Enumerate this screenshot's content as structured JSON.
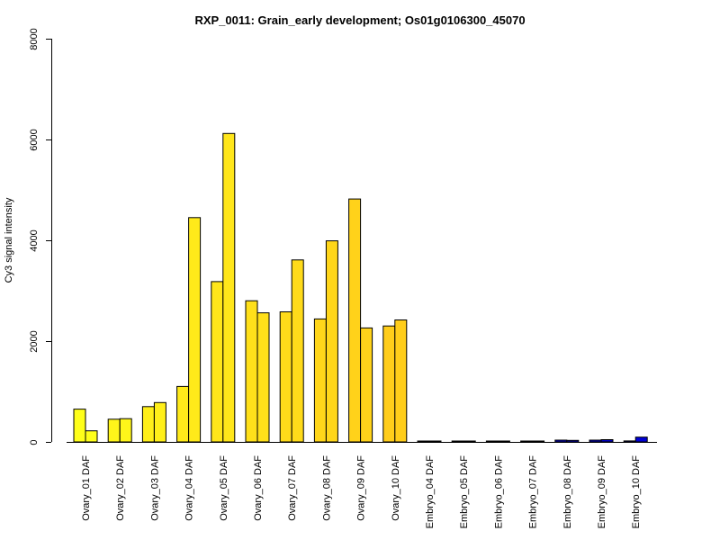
{
  "chart_data": {
    "type": "bar",
    "title": "RXP_0011: Grain_early development; Os01g0106300_45070",
    "xlabel": "",
    "ylabel": "Cy3 signal intensity",
    "ylim": [
      0,
      8000
    ],
    "yticks": [
      "0",
      "2000",
      "4000",
      "6000",
      "8000"
    ],
    "grid": false,
    "bars_per_group": 2,
    "categories": [
      "Ovary_01 DAF",
      "Ovary_02 DAF",
      "Ovary_03 DAF",
      "Ovary_04 DAF",
      "Ovary_05 DAF",
      "Ovary_06 DAF",
      "Ovary_07 DAF",
      "Ovary_08 DAF",
      "Ovary_09 DAF",
      "Ovary_10 DAF",
      "Embryo_04 DAF",
      "Embryo_05 DAF",
      "Embryo_06 DAF",
      "Embryo_07 DAF",
      "Embryo_08 DAF",
      "Embryo_09 DAF",
      "Embryo_10 DAF"
    ],
    "values": [
      [
        650,
        220
      ],
      [
        450,
        460
      ],
      [
        700,
        780
      ],
      [
        1100,
        4450
      ],
      [
        3180,
        6120
      ],
      [
        2800,
        2560
      ],
      [
        2580,
        3610
      ],
      [
        2440,
        3990
      ],
      [
        4820,
        2260
      ],
      [
        2300,
        2420
      ],
      [
        8,
        8
      ],
      [
        10,
        8
      ],
      [
        15,
        8
      ],
      [
        10,
        12
      ],
      [
        35,
        30
      ],
      [
        35,
        45
      ],
      [
        20,
        95
      ]
    ],
    "colors": [
      "#ffff1a",
      "#fff51a",
      "#ffef1a",
      "#ffea1a",
      "#ffe61a",
      "#ffe01a",
      "#ffdb1a",
      "#ffd61a",
      "#ffd21a",
      "#ffcd1a",
      "#0000c0",
      "#0000c0",
      "#0000c0",
      "#0000c0",
      "#0000c0",
      "#0000c0",
      "#0000d6"
    ]
  }
}
